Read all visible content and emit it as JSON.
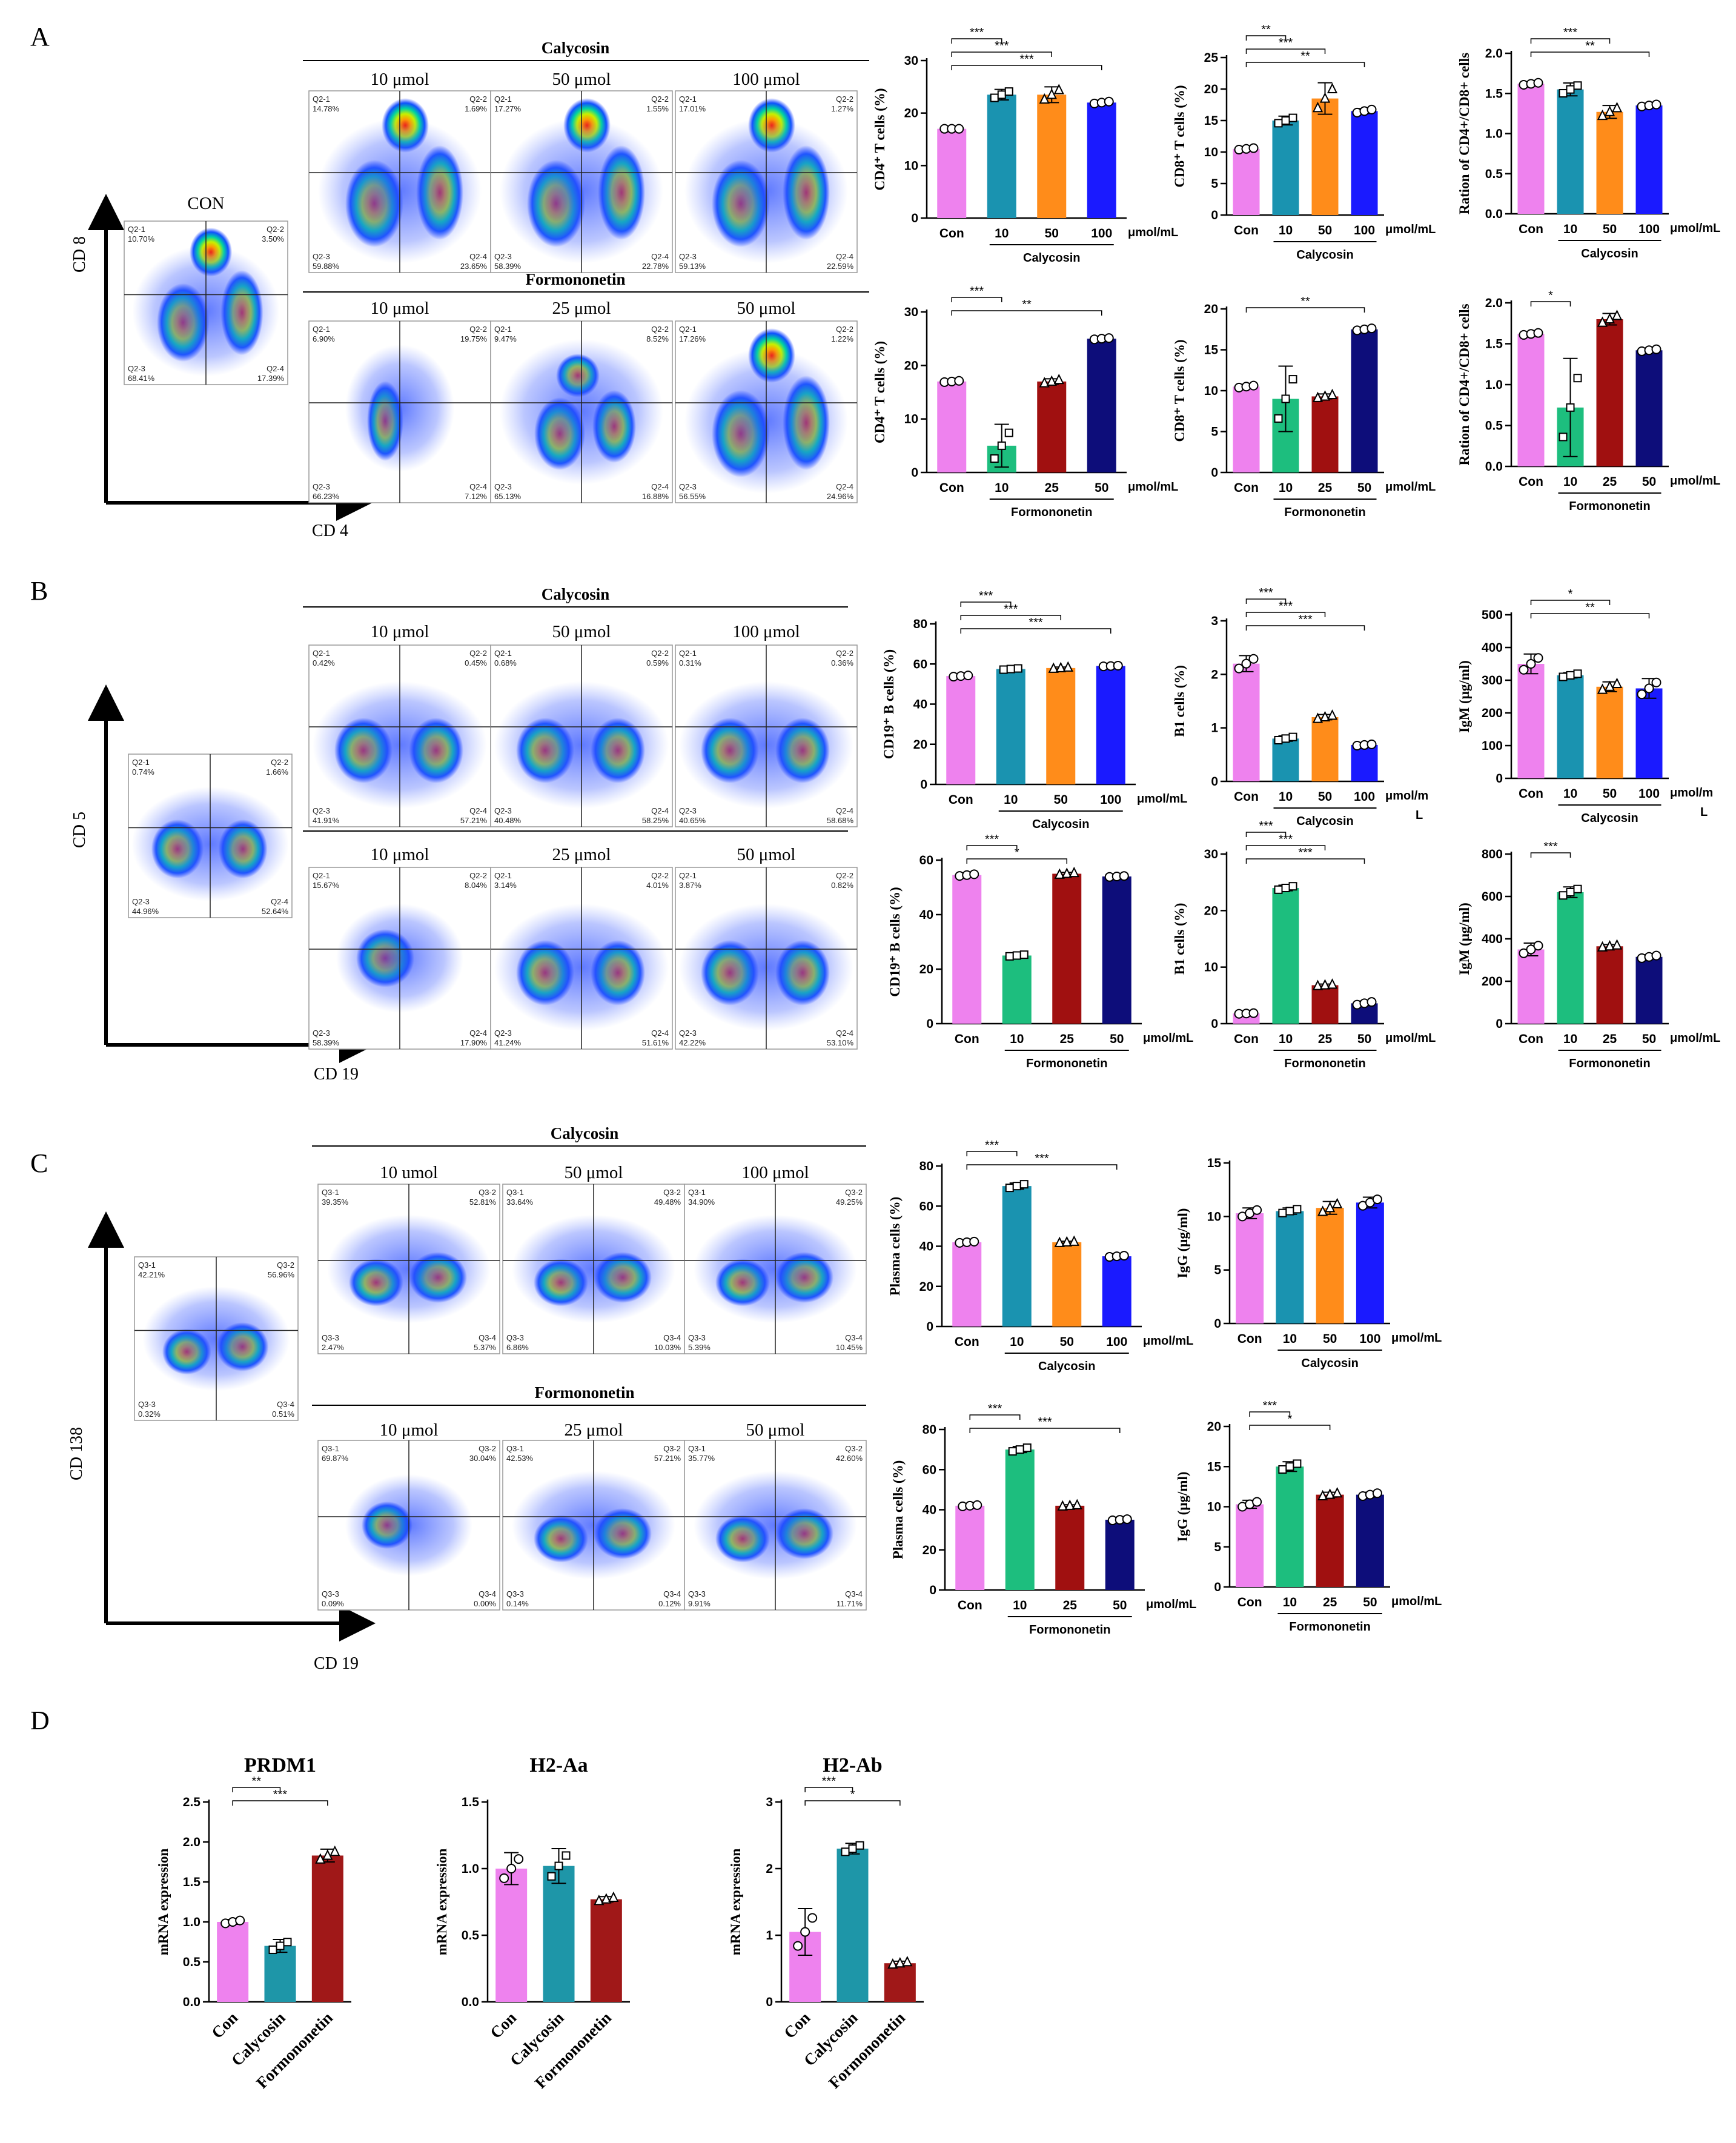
{
  "panels": {
    "A": "A",
    "B": "B",
    "C": "C",
    "D": "D"
  },
  "colors": {
    "con": "#EE82EE",
    "cal10": "#1A93B0",
    "cal50": "#FF8C1A",
    "cal100": "#1A1AFF",
    "for10": "#1DBE7E",
    "for25": "#A01010",
    "for50": "#0D0D7A",
    "calD": "#1E96A8",
    "forD": "#A01818"
  },
  "flow": {
    "A": {
      "y_axis": "CD 8",
      "x_axis": "CD 4",
      "con_label": "CON",
      "cal_header": "Calycosin",
      "for_header": "Formononetin",
      "cal_conc": [
        "10 μmol",
        "50 μmol",
        "100 μmol"
      ],
      "for_conc": [
        "10 μmol",
        "25 μmol",
        "50 μmol"
      ],
      "con_quads": [
        "Q2-1",
        "10.70%",
        "Q2-2",
        "3.50%",
        "Q2-3",
        "68.41%",
        "Q2-4",
        "17.39%"
      ],
      "cal_quads": [
        [
          "Q2-1",
          "14.78%",
          "Q2-2",
          "1.69%",
          "Q2-3",
          "59.88%",
          "Q2-4",
          "23.65%"
        ],
        [
          "Q2-1",
          "17.27%",
          "Q2-2",
          "1.55%",
          "Q2-3",
          "58.39%",
          "Q2-4",
          "22.78%"
        ],
        [
          "Q2-1",
          "17.01%",
          "Q2-2",
          "1.27%",
          "Q2-3",
          "59.13%",
          "Q2-4",
          "22.59%"
        ]
      ],
      "for_quads": [
        [
          "Q2-1",
          "6.90%",
          "Q2-2",
          "19.75%",
          "Q2-3",
          "66.23%",
          "Q2-4",
          "7.12%"
        ],
        [
          "Q2-1",
          "9.47%",
          "Q2-2",
          "8.52%",
          "Q2-3",
          "65.13%",
          "Q2-4",
          "16.88%"
        ],
        [
          "Q2-1",
          "17.26%",
          "Q2-2",
          "1.22%",
          "Q2-3",
          "56.55%",
          "Q2-4",
          "24.96%"
        ]
      ]
    },
    "B": {
      "y_axis": "CD 5",
      "x_axis": "CD 19",
      "cal_header": "Calycosin",
      "for_header": "Formononetin",
      "cal_conc": [
        "10 μmol",
        "50 μmol",
        "100 μmol"
      ],
      "for_conc": [
        "10 μmol",
        "25 μmol",
        "50 μmol"
      ],
      "con_quads": [
        "Q2-1",
        "0.74%",
        "Q2-2",
        "1.66%",
        "Q2-3",
        "44.96%",
        "Q2-4",
        "52.64%"
      ],
      "cal_quads": [
        [
          "Q2-1",
          "0.42%",
          "Q2-2",
          "0.45%",
          "Q2-3",
          "41.91%",
          "Q2-4",
          "57.21%"
        ],
        [
          "Q2-1",
          "0.68%",
          "Q2-2",
          "0.59%",
          "Q2-3",
          "40.48%",
          "Q2-4",
          "58.25%"
        ],
        [
          "Q2-1",
          "0.31%",
          "Q2-2",
          "0.36%",
          "Q2-3",
          "40.65%",
          "Q2-4",
          "58.68%"
        ]
      ],
      "for_quads": [
        [
          "Q2-1",
          "15.67%",
          "Q2-2",
          "8.04%",
          "Q2-3",
          "58.39%",
          "Q2-4",
          "17.90%"
        ],
        [
          "Q2-1",
          "3.14%",
          "Q2-2",
          "4.01%",
          "Q2-3",
          "41.24%",
          "Q2-4",
          "51.61%"
        ],
        [
          "Q2-1",
          "3.87%",
          "Q2-2",
          "0.82%",
          "Q2-3",
          "42.22%",
          "Q2-4",
          "53.10%"
        ]
      ]
    },
    "C": {
      "y_axis": "CD 138",
      "x_axis": "CD 19",
      "cal_header": "Calycosin",
      "for_header": "Formononetin",
      "cal_conc": [
        "10 umol",
        "50 μmol",
        "100 μmol"
      ],
      "for_conc": [
        "10 μmol",
        "25 μmol",
        "50 μmol"
      ],
      "con_quads": [
        "Q3-1",
        "42.21%",
        "Q3-2",
        "56.96%",
        "Q3-3",
        "0.32%",
        "Q3-4",
        "0.51%"
      ],
      "cal_quads": [
        [
          "Q3-1",
          "39.35%",
          "Q3-2",
          "52.81%",
          "Q3-3",
          "2.47%",
          "Q3-4",
          "5.37%"
        ],
        [
          "Q3-1",
          "33.64%",
          "Q3-2",
          "49.48%",
          "Q3-3",
          "6.86%",
          "Q3-4",
          "10.03%"
        ],
        [
          "Q3-1",
          "34.90%",
          "Q3-2",
          "49.25%",
          "Q3-3",
          "5.39%",
          "Q3-4",
          "10.45%"
        ]
      ],
      "for_quads": [
        [
          "Q3-1",
          "69.87%",
          "Q3-2",
          "30.04%",
          "Q3-3",
          "0.09%",
          "Q3-4",
          "0.00%"
        ],
        [
          "Q3-1",
          "42.53%",
          "Q3-2",
          "57.21%",
          "Q3-3",
          "0.14%",
          "Q3-4",
          "0.12%"
        ],
        [
          "Q3-1",
          "35.77%",
          "Q3-2",
          "42.60%",
          "Q3-3",
          "9.91%",
          "Q3-4",
          "11.71%"
        ]
      ]
    }
  },
  "chart_data": [
    {
      "id": "A-cal-cd4",
      "type": "bar",
      "ylabel": "CD4⁺ T cells (%)",
      "ylim": [
        0,
        30
      ],
      "yticks": [
        0,
        10,
        20,
        30
      ],
      "categories": [
        "Con",
        "10",
        "50",
        "100"
      ],
      "unit": "μmol/mL",
      "group": "Calycosin",
      "values": [
        17,
        23.5,
        23.5,
        22
      ],
      "errors": [
        0,
        1,
        1.5,
        0.3
      ],
      "colors": [
        "con",
        "cal10",
        "cal50",
        "cal100"
      ],
      "sig": [
        [
          "***",
          0,
          1
        ],
        [
          "***",
          0,
          2
        ],
        [
          "***",
          0,
          3
        ]
      ]
    },
    {
      "id": "A-cal-cd8",
      "type": "bar",
      "ylabel": "CD8⁺ T cells (%)",
      "ylim": [
        0,
        25
      ],
      "yticks": [
        0,
        5,
        10,
        15,
        20,
        25
      ],
      "categories": [
        "Con",
        "10",
        "50",
        "100"
      ],
      "unit": "μmol/mL",
      "group": "Calycosin",
      "values": [
        10.5,
        15,
        18.5,
        16.5
      ],
      "errors": [
        0.2,
        0.7,
        2.5,
        0.4
      ],
      "colors": [
        "con",
        "cal10",
        "cal50",
        "cal100"
      ],
      "sig": [
        [
          "**",
          0,
          1
        ],
        [
          "***",
          0,
          2
        ],
        [
          "**",
          0,
          3
        ]
      ]
    },
    {
      "id": "A-cal-ratio",
      "type": "bar",
      "ylabel": "Ration of CD4+/CD8+ cells",
      "ylim": [
        0,
        2.0
      ],
      "yticks": [
        0.0,
        0.5,
        1.0,
        1.5,
        2.0
      ],
      "categories": [
        "Con",
        "10",
        "50",
        "100"
      ],
      "unit": "μmol/mL",
      "group": "Calycosin",
      "values": [
        1.62,
        1.55,
        1.27,
        1.35
      ],
      "errors": [
        0.02,
        0.08,
        0.08,
        0.02
      ],
      "colors": [
        "con",
        "cal10",
        "cal50",
        "cal100"
      ],
      "sig": [
        [
          "***",
          0,
          2
        ],
        [
          "**",
          0,
          3
        ]
      ]
    },
    {
      "id": "A-for-cd4",
      "type": "bar",
      "ylabel": "CD4⁺ T cells (%)",
      "ylim": [
        0,
        30
      ],
      "yticks": [
        0,
        10,
        20,
        30
      ],
      "categories": [
        "Con",
        "10",
        "25",
        "50"
      ],
      "unit": "μmol/mL",
      "group": "Formononetin",
      "values": [
        17,
        5,
        17,
        25
      ],
      "errors": [
        0.2,
        4,
        0.5,
        0.2
      ],
      "colors": [
        "con",
        "for10",
        "for25",
        "for50"
      ],
      "sig": [
        [
          "***",
          0,
          1
        ],
        [
          "**",
          0,
          3
        ]
      ]
    },
    {
      "id": "A-for-cd8",
      "type": "bar",
      "ylabel": "CD8⁺ T cells (%)",
      "ylim": [
        0,
        20
      ],
      "yticks": [
        0,
        5,
        10,
        15,
        20
      ],
      "categories": [
        "Con",
        "10",
        "25",
        "50"
      ],
      "unit": "μmol/mL",
      "group": "Formononetin",
      "values": [
        10.5,
        9,
        9.3,
        17.5
      ],
      "errors": [
        0.2,
        4,
        0.3,
        0.2
      ],
      "colors": [
        "con",
        "for10",
        "for25",
        "for50"
      ],
      "sig": [
        [
          "**",
          0,
          3
        ]
      ]
    },
    {
      "id": "A-for-ratio",
      "type": "bar",
      "ylabel": "Ration of CD4+/CD8+ cells",
      "ylim": [
        0,
        2.0
      ],
      "yticks": [
        0.0,
        0.5,
        1.0,
        1.5,
        2.0
      ],
      "categories": [
        "Con",
        "10",
        "25",
        "50"
      ],
      "unit": "μmol/mL",
      "group": "Formononetin",
      "values": [
        1.62,
        0.72,
        1.8,
        1.42
      ],
      "errors": [
        0.02,
        0.6,
        0.07,
        0.02
      ],
      "colors": [
        "con",
        "for10",
        "for25",
        "for50"
      ],
      "sig": [
        [
          "*",
          0,
          1
        ]
      ]
    },
    {
      "id": "B-cal-cd19",
      "type": "bar",
      "ylabel": "CD19⁺ B cells (%)",
      "ylim": [
        0,
        80
      ],
      "yticks": [
        0,
        20,
        40,
        60,
        80
      ],
      "categories": [
        "Con",
        "10",
        "50",
        "100"
      ],
      "unit": "μmol/mL",
      "group": "Calycosin",
      "values": [
        54,
        57.5,
        58,
        59
      ],
      "errors": [
        0.5,
        0.5,
        0.5,
        0.3
      ],
      "colors": [
        "con",
        "cal10",
        "cal50",
        "cal100"
      ],
      "sig": [
        [
          "***",
          0,
          1
        ],
        [
          "***",
          0,
          2
        ],
        [
          "***",
          0,
          3
        ]
      ]
    },
    {
      "id": "B-cal-b1",
      "type": "bar",
      "ylabel": "B1 cells (%)",
      "ylim": [
        0,
        3
      ],
      "yticks": [
        0,
        1,
        2,
        3
      ],
      "categories": [
        "Con",
        "10",
        "50",
        "100"
      ],
      "unit": "μmol/m",
      "unit2": "L",
      "group": "Calycosin",
      "values": [
        2.2,
        0.8,
        1.2,
        0.68
      ],
      "errors": [
        0.15,
        0.05,
        0.05,
        0.02
      ],
      "colors": [
        "con",
        "cal10",
        "cal50",
        "cal100"
      ],
      "sig": [
        [
          "***",
          0,
          1
        ],
        [
          "***",
          0,
          2
        ],
        [
          "***",
          0,
          3
        ]
      ]
    },
    {
      "id": "B-cal-igm",
      "type": "bar",
      "ylabel": "IgM (μg/ml)",
      "ylim": [
        0,
        500
      ],
      "yticks": [
        0,
        100,
        200,
        300,
        400,
        500
      ],
      "categories": [
        "Con",
        "10",
        "50",
        "100"
      ],
      "unit": "μmol/m",
      "unit2": "L",
      "group": "Calycosin",
      "values": [
        350,
        315,
        280,
        275
      ],
      "errors": [
        30,
        8,
        15,
        30
      ],
      "colors": [
        "con",
        "cal10",
        "cal50",
        "cal100"
      ],
      "sig": [
        [
          "*",
          0,
          2
        ],
        [
          "**",
          0,
          3
        ]
      ]
    },
    {
      "id": "B-for-cd19",
      "type": "bar",
      "ylabel": "CD19⁺ B cells (%)",
      "ylim": [
        0,
        60
      ],
      "yticks": [
        0,
        20,
        40,
        60
      ],
      "categories": [
        "Con",
        "10",
        "25",
        "50"
      ],
      "unit": "μmol/mL",
      "group": "Formononetin",
      "values": [
        54.5,
        25,
        55,
        54
      ],
      "errors": [
        0.5,
        0.5,
        0.5,
        0.3
      ],
      "colors": [
        "con",
        "for10",
        "for25",
        "for50"
      ],
      "sig": [
        [
          "***",
          0,
          1
        ],
        [
          "*",
          0,
          2
        ]
      ]
    },
    {
      "id": "B-for-b1",
      "type": "bar",
      "ylabel": "B1 cells (%)",
      "ylim": [
        0,
        30
      ],
      "yticks": [
        0,
        10,
        20,
        30
      ],
      "categories": [
        "Con",
        "10",
        "25",
        "50"
      ],
      "unit": "μmol/mL",
      "group": "Formononetin",
      "values": [
        1.8,
        24,
        6.8,
        3.6
      ],
      "errors": [
        0.1,
        0.5,
        0.2,
        0.4
      ],
      "colors": [
        "con",
        "for10",
        "for25",
        "for50"
      ],
      "sig": [
        [
          "***",
          0,
          1
        ],
        [
          "***",
          0,
          2
        ],
        [
          "***",
          0,
          3
        ]
      ]
    },
    {
      "id": "B-for-igm",
      "type": "bar",
      "ylabel": "IgM (μg/ml)",
      "ylim": [
        0,
        800
      ],
      "yticks": [
        0,
        200,
        400,
        600,
        800
      ],
      "categories": [
        "Con",
        "10",
        "25",
        "50"
      ],
      "unit": "μmol/mL",
      "group": "Formononetin",
      "values": [
        350,
        620,
        365,
        315
      ],
      "errors": [
        30,
        25,
        8,
        10
      ],
      "colors": [
        "con",
        "for10",
        "for25",
        "for50"
      ],
      "sig": [
        [
          "***",
          0,
          1
        ]
      ]
    },
    {
      "id": "C-cal-plasma",
      "type": "bar",
      "ylabel": "Plasma cells (%)",
      "ylim": [
        0,
        80
      ],
      "yticks": [
        0,
        20,
        40,
        60,
        80
      ],
      "categories": [
        "Con",
        "10",
        "50",
        "100"
      ],
      "unit": "μmol/mL",
      "group": "Calycosin",
      "values": [
        42,
        70,
        42,
        35
      ],
      "errors": [
        0.5,
        1.5,
        0.5,
        0.5
      ],
      "colors": [
        "con",
        "cal10",
        "cal50",
        "cal100"
      ],
      "sig": [
        [
          "***",
          0,
          1
        ],
        [
          "***",
          0,
          3
        ]
      ]
    },
    {
      "id": "C-cal-igg",
      "type": "bar",
      "ylabel": "IgG (μg/ml)",
      "ylim": [
        0,
        15
      ],
      "yticks": [
        0,
        5,
        10,
        15
      ],
      "categories": [
        "Con",
        "10",
        "50",
        "100"
      ],
      "unit": "μmol/mL",
      "group": "Calycosin",
      "values": [
        10.3,
        10.5,
        10.8,
        11.3
      ],
      "errors": [
        0.5,
        0.3,
        0.6,
        0.5
      ],
      "colors": [
        "con",
        "cal10",
        "cal50",
        "cal100"
      ],
      "sig": []
    },
    {
      "id": "C-for-plasma",
      "type": "bar",
      "ylabel": "Plasma cells (%)",
      "ylim": [
        0,
        80
      ],
      "yticks": [
        0,
        20,
        40,
        60,
        80
      ],
      "categories": [
        "Con",
        "10",
        "25",
        "50"
      ],
      "unit": "μmol/mL",
      "group": "Formononetin",
      "values": [
        42,
        70,
        42,
        35
      ],
      "errors": [
        0.5,
        1.5,
        0.5,
        0.5
      ],
      "colors": [
        "con",
        "for10",
        "for25",
        "for50"
      ],
      "sig": [
        [
          "***",
          0,
          1
        ],
        [
          "***",
          0,
          3
        ]
      ]
    },
    {
      "id": "C-for-igg",
      "type": "bar",
      "ylabel": "IgG (μg/ml)",
      "ylim": [
        0,
        20
      ],
      "yticks": [
        0,
        5,
        10,
        15,
        20
      ],
      "categories": [
        "Con",
        "10",
        "25",
        "50"
      ],
      "unit": "μmol/mL",
      "group": "Formononetin",
      "values": [
        10.3,
        15,
        11.5,
        11.5
      ],
      "errors": [
        0.5,
        0.6,
        0.3,
        0.3
      ],
      "colors": [
        "con",
        "for10",
        "for25",
        "for50"
      ],
      "sig": [
        [
          "***",
          0,
          1
        ],
        [
          "*",
          0,
          2
        ]
      ]
    },
    {
      "id": "D-prdm1",
      "type": "bar",
      "title": "PRDM1",
      "ylabel": "mRNA expression",
      "ylim": [
        0,
        2.5
      ],
      "yticks": [
        0.0,
        0.5,
        1.0,
        1.5,
        2.0,
        2.5
      ],
      "categories": [
        "Con",
        "Calycosin",
        "Formononetin"
      ],
      "values": [
        1.0,
        0.7,
        1.83
      ],
      "errors": [
        0.03,
        0.08,
        0.08
      ],
      "colors": [
        "con",
        "calD",
        "forD"
      ],
      "sig": [
        [
          "**",
          0,
          1
        ],
        [
          "***",
          0,
          2
        ]
      ]
    },
    {
      "id": "D-h2aa",
      "type": "bar",
      "title": "H2-Aa",
      "ylabel": "mRNA expression",
      "ylim": [
        0,
        1.5
      ],
      "yticks": [
        0.0,
        0.5,
        1.0,
        1.5
      ],
      "categories": [
        "Con",
        "Calycosin",
        "Formononetin"
      ],
      "values": [
        1.0,
        1.02,
        0.77
      ],
      "errors": [
        0.12,
        0.13,
        0.02
      ],
      "colors": [
        "con",
        "calD",
        "forD"
      ],
      "sig": []
    },
    {
      "id": "D-h2ab",
      "type": "bar",
      "title": "H2-Ab",
      "ylabel": "mRNA expression",
      "ylim": [
        0,
        3
      ],
      "yticks": [
        0,
        1,
        2,
        3
      ],
      "categories": [
        "Con",
        "Calycosin",
        "Formononetin"
      ],
      "values": [
        1.05,
        2.3,
        0.58
      ],
      "errors": [
        0.35,
        0.08,
        0.03
      ],
      "colors": [
        "con",
        "calD",
        "forD"
      ],
      "sig": [
        [
          "***",
          0,
          1
        ],
        [
          "*",
          0,
          2
        ]
      ]
    }
  ]
}
